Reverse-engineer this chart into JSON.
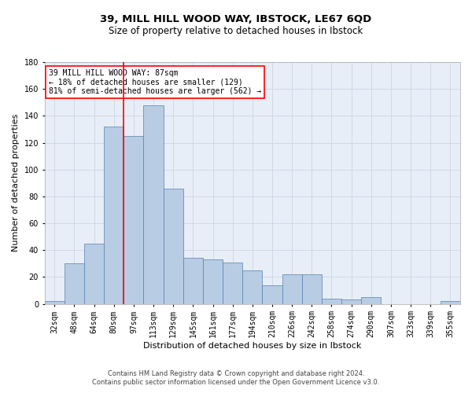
{
  "title1": "39, MILL HILL WOOD WAY, IBSTOCK, LE67 6QD",
  "title2": "Size of property relative to detached houses in Ibstock",
  "xlabel": "Distribution of detached houses by size in Ibstock",
  "ylabel": "Number of detached properties",
  "categories": [
    "32sqm",
    "48sqm",
    "64sqm",
    "80sqm",
    "97sqm",
    "113sqm",
    "129sqm",
    "145sqm",
    "161sqm",
    "177sqm",
    "194sqm",
    "210sqm",
    "226sqm",
    "242sqm",
    "258sqm",
    "274sqm",
    "290sqm",
    "307sqm",
    "323sqm",
    "339sqm",
    "355sqm"
  ],
  "values": [
    2,
    30,
    45,
    132,
    125,
    148,
    86,
    34,
    33,
    31,
    25,
    14,
    22,
    22,
    4,
    3,
    5,
    0,
    0,
    0,
    2
  ],
  "bar_color": "#b8cce4",
  "bar_edge_color": "#5580b0",
  "vline_x": 3.5,
  "vline_color": "red",
  "annotation_text": "39 MILL HILL WOOD WAY: 87sqm\n← 18% of detached houses are smaller (129)\n81% of semi-detached houses are larger (562) →",
  "annotation_box_color": "white",
  "annotation_box_edge_color": "red",
  "ylim": [
    0,
    180
  ],
  "yticks": [
    0,
    20,
    40,
    60,
    80,
    100,
    120,
    140,
    160,
    180
  ],
  "grid_color": "#d0d8e8",
  "background_color": "#e8eef7",
  "footer1": "Contains HM Land Registry data © Crown copyright and database right 2024.",
  "footer2": "Contains public sector information licensed under the Open Government Licence v3.0.",
  "title1_fontsize": 9.5,
  "title2_fontsize": 8.5,
  "xlabel_fontsize": 8,
  "ylabel_fontsize": 8,
  "tick_fontsize": 7,
  "footer_fontsize": 6,
  "annotation_fontsize": 7
}
